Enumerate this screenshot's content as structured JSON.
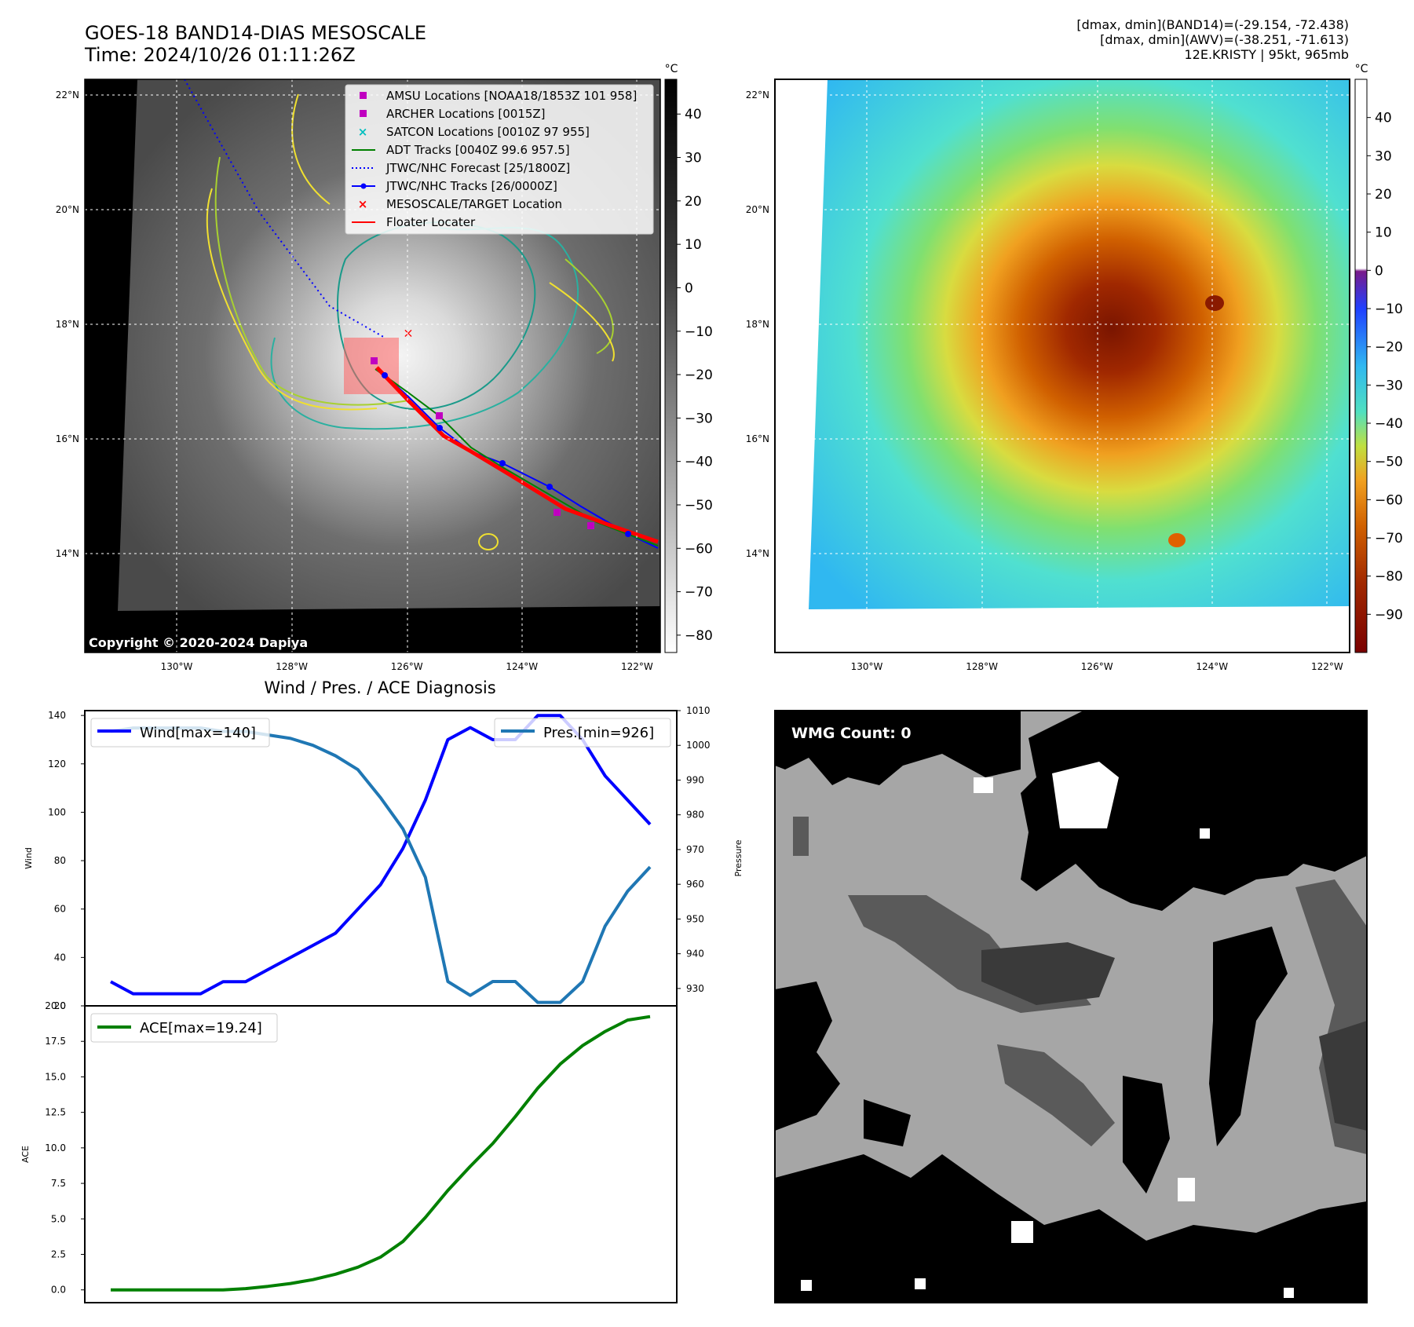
{
  "header": {
    "title_line1": "GOES-18 BAND14-DIAS MESOSCALE",
    "title_line2": "Time: 2024/10/26 01:11:26Z",
    "info_line1": "[dmax, dmin](BAND14)=(-29.154, -72.438)",
    "info_line2": "[dmax, dmin](AWV)=(-38.251, -71.613)",
    "info_line3": "12E.KRISTY | 95kt, 965mb"
  },
  "map": {
    "lon_labels": [
      "130°W",
      "128°W",
      "126°W",
      "124°W",
      "122°W"
    ],
    "lat_labels": [
      "22°N",
      "20°N",
      "18°N",
      "16°N",
      "14°N"
    ],
    "lon_values": [
      -130,
      -128,
      -126,
      -124,
      -122
    ],
    "lat_values": [
      22,
      20,
      18,
      16,
      14
    ],
    "copyright": "Copyright © 2020-2024 Dapiya",
    "legend": [
      {
        "label": "AMSU Locations [NOAA18/1853Z 101 958]",
        "marker": "square",
        "color": "#c000c0"
      },
      {
        "label": "ARCHER Locations [0015Z]",
        "marker": "square",
        "color": "#c000c0"
      },
      {
        "label": "SATCON Locations [0010Z 97 955]",
        "marker": "x",
        "color": "#00bfbf"
      },
      {
        "label": "ADT Tracks [0040Z 99.6 957.5]",
        "marker": "line",
        "color": "#008000"
      },
      {
        "label": "JTWC/NHC Forecast [25/1800Z]",
        "marker": "dotted",
        "color": "#0000ff"
      },
      {
        "label": "JTWC/NHC Tracks [26/0000Z]",
        "marker": "line-dot",
        "color": "#0000ff"
      },
      {
        "label": "MESOSCALE/TARGET Location",
        "marker": "x",
        "color": "#ff0000"
      },
      {
        "label": "Floater Locater",
        "marker": "line",
        "color": "#ff0000"
      }
    ]
  },
  "colorbars": {
    "unit": "°C",
    "gray_ticks": [
      "40",
      "30",
      "20",
      "10",
      "0",
      "−10",
      "−20",
      "−30",
      "−40",
      "−50",
      "−60",
      "−70",
      "−80"
    ],
    "gray_values": [
      40,
      30,
      20,
      10,
      0,
      -10,
      -20,
      -30,
      -40,
      -50,
      -60,
      -70,
      -80
    ],
    "color_ticks": [
      "40",
      "30",
      "20",
      "10",
      "0",
      "−10",
      "−20",
      "−30",
      "−40",
      "−50",
      "−60",
      "−70",
      "−80",
      "−90"
    ],
    "color_values": [
      40,
      30,
      20,
      10,
      0,
      -10,
      -20,
      -30,
      -40,
      -50,
      -60,
      -70,
      -80,
      -90
    ]
  },
  "chart_data": [
    {
      "type": "line",
      "title": "Wind / Pres. / ACE Diagnosis",
      "ylabel": "Wind",
      "y2label": "Pressure",
      "ylim": [
        20,
        142
      ],
      "y2lim": [
        925,
        1010
      ],
      "yticks": [
        20,
        40,
        60,
        80,
        100,
        120,
        140
      ],
      "y2ticks": [
        930,
        940,
        950,
        960,
        970,
        980,
        990,
        1000,
        1010
      ],
      "series": [
        {
          "name": "Wind[max=140]",
          "axis": "left",
          "color": "#0000ff",
          "values": [
            30,
            25,
            25,
            25,
            25,
            30,
            30,
            35,
            40,
            45,
            50,
            60,
            70,
            85,
            105,
            130,
            135,
            130,
            130,
            140,
            140,
            130,
            115,
            105,
            95
          ]
        },
        {
          "name": "Pres.[min=926]",
          "axis": "right",
          "color": "#1f77b4",
          "values": [
            1004,
            1005,
            1005,
            1005,
            1005,
            1004,
            1004,
            1003,
            1002,
            1000,
            997,
            993,
            985,
            976,
            962,
            932,
            928,
            932,
            932,
            926,
            926,
            932,
            948,
            958,
            965
          ]
        }
      ]
    },
    {
      "type": "line",
      "ylabel": "ACE",
      "ylim": [
        -0.9,
        20.0
      ],
      "yticks": [
        "0.0",
        "2.5",
        "5.0",
        "7.5",
        "10.0",
        "12.5",
        "15.0",
        "17.5",
        "20.0"
      ],
      "series": [
        {
          "name": "ACE[max=19.24]",
          "color": "#008000",
          "values": [
            0,
            0,
            0,
            0,
            0,
            0,
            0.09,
            0.25,
            0.45,
            0.72,
            1.1,
            1.6,
            2.3,
            3.4,
            5.1,
            7.0,
            8.7,
            10.3,
            12.2,
            14.2,
            15.9,
            17.2,
            18.2,
            19.0,
            19.24
          ]
        }
      ]
    }
  ],
  "wmg": {
    "count_label": "WMG Count: 0"
  }
}
